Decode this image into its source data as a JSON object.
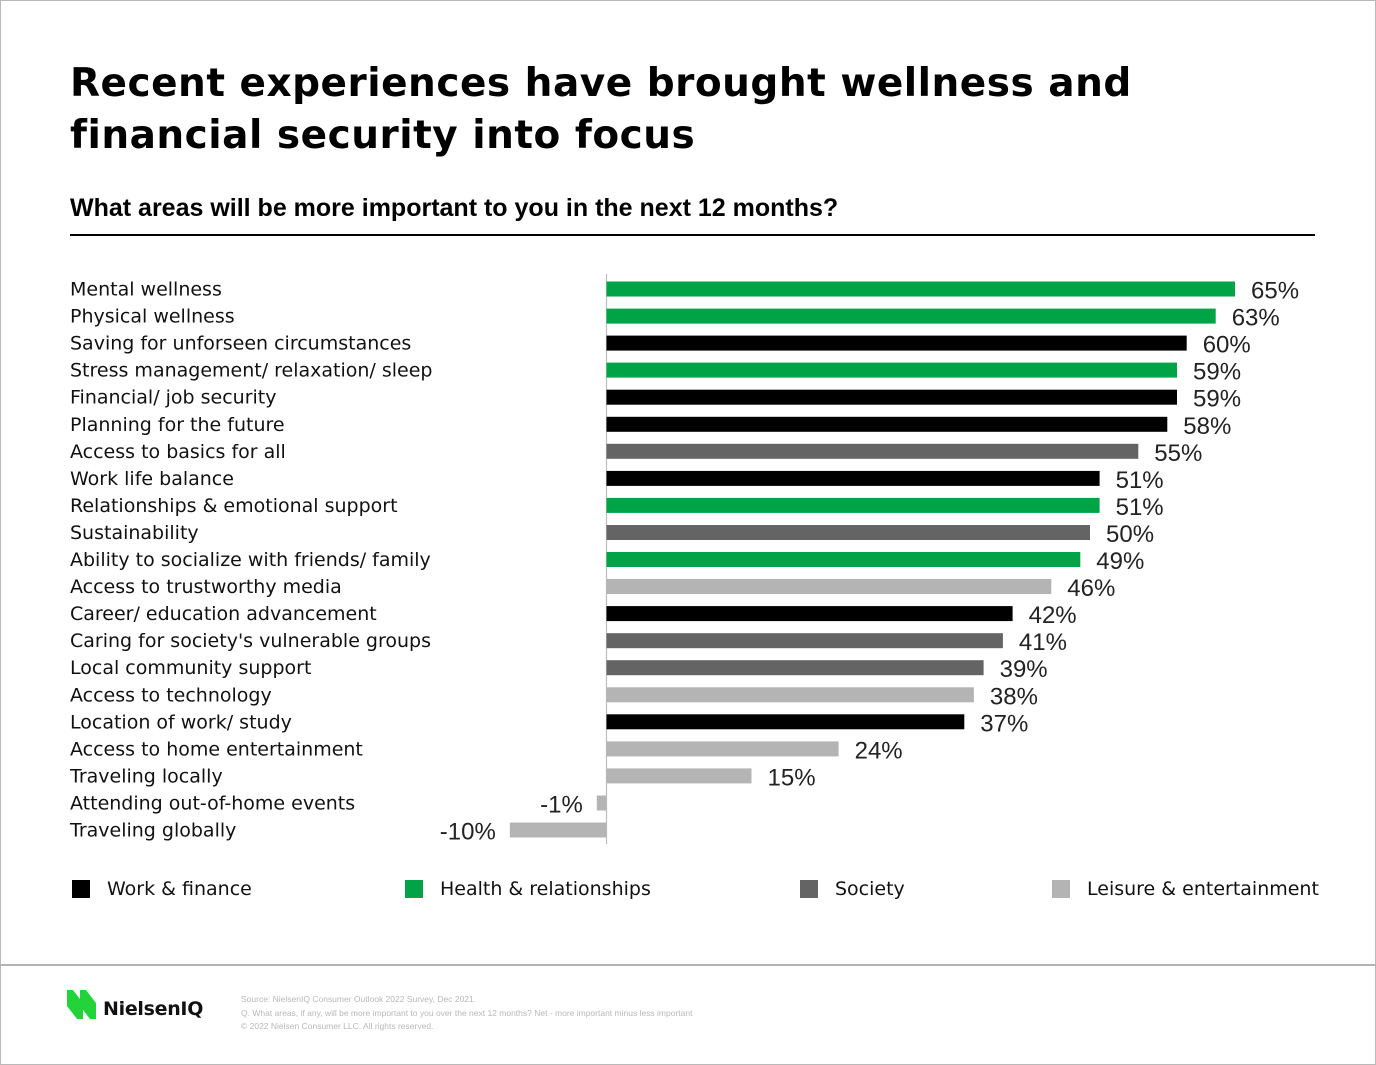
{
  "title": "Recent experiences have brought wellness and financial security into focus",
  "subtitle": "What areas will be more important to you in the next 12 months?",
  "colors": {
    "work_finance": "#000000",
    "health_relationships": "#00a346",
    "society": "#646464",
    "leisure_entertainment": "#b4b4b4",
    "brand_green": "#22d33a"
  },
  "chart_data": {
    "type": "bar",
    "orientation": "horizontal",
    "title": "What areas will be more important to you in the next 12 months?",
    "xlabel": "",
    "ylabel": "",
    "unit": "%",
    "xlim": [
      -10,
      65
    ],
    "grid": false,
    "legend_position": "bottom",
    "categories": [
      "Mental wellness",
      "Physical wellness",
      "Saving for unforseen circumstances",
      "Stress management/ relaxation/ sleep",
      "Financial/ job security",
      "Planning for the future",
      "Access to basics for all",
      "Work life balance",
      "Relationships & emotional support",
      "Sustainability",
      "Ability to socialize with friends/ family",
      "Access to trustworthy media",
      "Career/ education advancement",
      "Caring for society's vulnerable groups",
      "Local community support",
      "Access to technology",
      "Location of work/ study",
      "Access to home entertainment",
      "Traveling locally",
      "Attending out-of-home events",
      "Traveling globally"
    ],
    "values": [
      65,
      63,
      60,
      59,
      59,
      58,
      55,
      51,
      51,
      50,
      49,
      46,
      42,
      41,
      39,
      38,
      37,
      24,
      15,
      -1,
      -10
    ],
    "value_labels": [
      "65%",
      "63%",
      "60%",
      "59%",
      "59%",
      "58%",
      "55%",
      "51%",
      "51%",
      "50%",
      "49%",
      "46%",
      "42%",
      "41%",
      "39%",
      "38%",
      "37%",
      "24%",
      "15%",
      "-1%",
      "-10%"
    ],
    "groups": [
      "health_relationships",
      "health_relationships",
      "work_finance",
      "health_relationships",
      "work_finance",
      "work_finance",
      "society",
      "work_finance",
      "health_relationships",
      "society",
      "health_relationships",
      "leisure_entertainment",
      "work_finance",
      "society",
      "society",
      "leisure_entertainment",
      "work_finance",
      "leisure_entertainment",
      "leisure_entertainment",
      "leisure_entertainment",
      "leisure_entertainment"
    ],
    "legend": [
      {
        "key": "work_finance",
        "label": "Work & finance"
      },
      {
        "key": "health_relationships",
        "label": "Health & relationships"
      },
      {
        "key": "society",
        "label": "Society"
      },
      {
        "key": "leisure_entertainment",
        "label": "Leisure & entertainment"
      }
    ]
  },
  "footer": {
    "logo_text": "NielsenIQ",
    "source": "Source: NielsenIQ Consumer Outlook 2022 Survey, Dec 2021.",
    "question": "Q. What areas, if any, will be more important to you over the next 12 months? Net - more important minus less important",
    "copyright": "© 2022 Nielsen Consumer LLC. All rights reserved."
  }
}
